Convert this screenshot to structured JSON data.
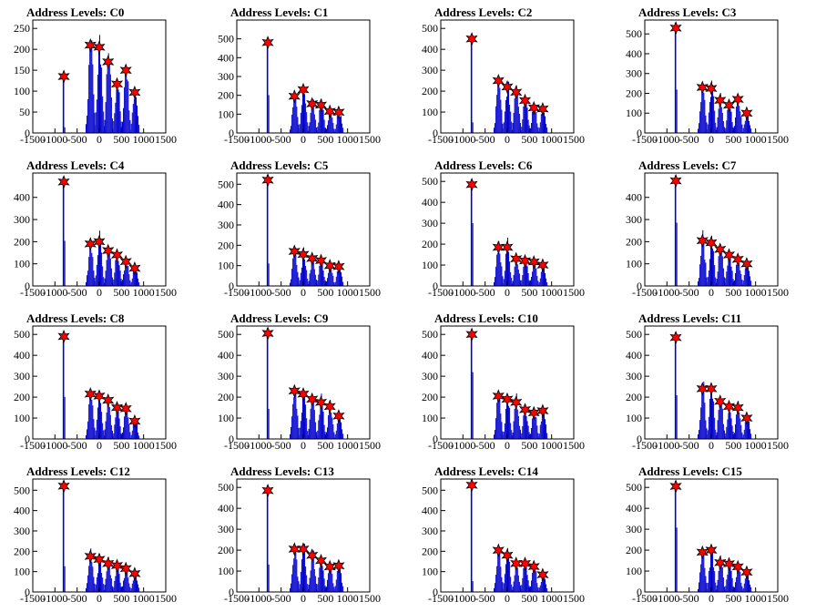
{
  "chart_data": [
    {
      "type": "bar",
      "title": "Address Levels: C0",
      "xlim": [
        -1500,
        1500
      ],
      "xticks": [
        -1500,
        -1000,
        -500,
        0,
        500,
        1000,
        1500
      ],
      "ylim": [
        0,
        270
      ],
      "yticks": [
        0,
        50,
        100,
        150,
        200,
        250
      ],
      "peaks": [
        {
          "x": -800,
          "y": 135
        },
        {
          "x": -200,
          "y": 210
        },
        {
          "x": 0,
          "y": 205
        },
        {
          "x": 200,
          "y": 170
        },
        {
          "x": 400,
          "y": 117
        },
        {
          "x": 600,
          "y": 150
        },
        {
          "x": 800,
          "y": 97
        }
      ]
    },
    {
      "type": "bar",
      "title": "Address Levels: C1",
      "xlim": [
        -1500,
        1500
      ],
      "xticks": [
        -1500,
        -1000,
        -500,
        0,
        500,
        1000,
        1500
      ],
      "ylim": [
        0,
        600
      ],
      "yticks": [
        0,
        100,
        200,
        300,
        400,
        500
      ],
      "peaks": [
        {
          "x": -800,
          "y": 480
        },
        {
          "x": -200,
          "y": 195
        },
        {
          "x": 0,
          "y": 230
        },
        {
          "x": 200,
          "y": 155
        },
        {
          "x": 400,
          "y": 148
        },
        {
          "x": 600,
          "y": 115
        },
        {
          "x": 800,
          "y": 110
        }
      ]
    },
    {
      "type": "bar",
      "title": "Address Levels: C2",
      "xlim": [
        -1500,
        1500
      ],
      "xticks": [
        -1500,
        -1000,
        -500,
        0,
        500,
        1000,
        1500
      ],
      "ylim": [
        0,
        540
      ],
      "yticks": [
        0,
        100,
        200,
        300,
        400,
        500
      ],
      "peaks": [
        {
          "x": -800,
          "y": 450
        },
        {
          "x": -200,
          "y": 250
        },
        {
          "x": 0,
          "y": 220
        },
        {
          "x": 200,
          "y": 195
        },
        {
          "x": 400,
          "y": 155
        },
        {
          "x": 600,
          "y": 120
        },
        {
          "x": 800,
          "y": 115
        }
      ]
    },
    {
      "type": "bar",
      "title": "Address Levels: C3",
      "xlim": [
        -1500,
        1500
      ],
      "xticks": [
        -1500,
        -1000,
        -500,
        0,
        500,
        1000,
        1500
      ],
      "ylim": [
        0,
        570
      ],
      "yticks": [
        0,
        100,
        200,
        300,
        400,
        500
      ],
      "peaks": [
        {
          "x": -800,
          "y": 530
        },
        {
          "x": -200,
          "y": 230
        },
        {
          "x": 0,
          "y": 225
        },
        {
          "x": 200,
          "y": 165
        },
        {
          "x": 400,
          "y": 140
        },
        {
          "x": 600,
          "y": 170
        },
        {
          "x": 800,
          "y": 100
        }
      ]
    },
    {
      "type": "bar",
      "title": "Address Levels: C4",
      "xlim": [
        -1500,
        1500
      ],
      "xticks": [
        -1500,
        -1000,
        -500,
        0,
        500,
        1000,
        1500
      ],
      "ylim": [
        0,
        510
      ],
      "yticks": [
        0,
        100,
        200,
        300,
        400
      ],
      "peaks": [
        {
          "x": -800,
          "y": 470
        },
        {
          "x": -200,
          "y": 190
        },
        {
          "x": 0,
          "y": 200
        },
        {
          "x": 200,
          "y": 160
        },
        {
          "x": 400,
          "y": 140
        },
        {
          "x": 600,
          "y": 110
        },
        {
          "x": 800,
          "y": 80
        }
      ]
    },
    {
      "type": "bar",
      "title": "Address Levels: C5",
      "xlim": [
        -1500,
        1500
      ],
      "xticks": [
        -1500,
        -1000,
        -500,
        0,
        500,
        1000,
        1500
      ],
      "ylim": [
        0,
        555
      ],
      "yticks": [
        0,
        100,
        200,
        300,
        400,
        500
      ],
      "peaks": [
        {
          "x": -800,
          "y": 520
        },
        {
          "x": -200,
          "y": 170
        },
        {
          "x": 0,
          "y": 155
        },
        {
          "x": 200,
          "y": 135
        },
        {
          "x": 400,
          "y": 125
        },
        {
          "x": 600,
          "y": 100
        },
        {
          "x": 800,
          "y": 95
        }
      ]
    },
    {
      "type": "bar",
      "title": "Address Levels: C6",
      "xlim": [
        -1500,
        1500
      ],
      "xticks": [
        -1500,
        -1000,
        -500,
        0,
        500,
        1000,
        1500
      ],
      "ylim": [
        0,
        540
      ],
      "yticks": [
        0,
        100,
        200,
        300,
        400,
        500
      ],
      "peaks": [
        {
          "x": -800,
          "y": 485
        },
        {
          "x": -200,
          "y": 185
        },
        {
          "x": 0,
          "y": 185
        },
        {
          "x": 200,
          "y": 130
        },
        {
          "x": 400,
          "y": 120
        },
        {
          "x": 600,
          "y": 115
        },
        {
          "x": 800,
          "y": 100
        }
      ]
    },
    {
      "type": "bar",
      "title": "Address Levels: C7",
      "xlim": [
        -1500,
        1500
      ],
      "xticks": [
        -1500,
        -1000,
        -500,
        0,
        500,
        1000,
        1500
      ],
      "ylim": [
        0,
        510
      ],
      "yticks": [
        0,
        100,
        200,
        300,
        400
      ],
      "peaks": [
        {
          "x": -800,
          "y": 475
        },
        {
          "x": -200,
          "y": 205
        },
        {
          "x": 0,
          "y": 195
        },
        {
          "x": 200,
          "y": 165
        },
        {
          "x": 400,
          "y": 140
        },
        {
          "x": 600,
          "y": 120
        },
        {
          "x": 800,
          "y": 100
        }
      ]
    },
    {
      "type": "bar",
      "title": "Address Levels: C8",
      "xlim": [
        -1500,
        1500
      ],
      "xticks": [
        -1500,
        -1000,
        -500,
        0,
        500,
        1000,
        1500
      ],
      "ylim": [
        0,
        540
      ],
      "yticks": [
        0,
        100,
        200,
        300,
        400,
        500
      ],
      "peaks": [
        {
          "x": -800,
          "y": 490
        },
        {
          "x": -200,
          "y": 215
        },
        {
          "x": 0,
          "y": 205
        },
        {
          "x": 200,
          "y": 185
        },
        {
          "x": 400,
          "y": 150
        },
        {
          "x": 600,
          "y": 145
        },
        {
          "x": 800,
          "y": 85
        }
      ]
    },
    {
      "type": "bar",
      "title": "Address Levels: C9",
      "xlim": [
        -1500,
        1500
      ],
      "xticks": [
        -1500,
        -1000,
        -500,
        0,
        500,
        1000,
        1500
      ],
      "ylim": [
        0,
        540
      ],
      "yticks": [
        0,
        100,
        200,
        300,
        400,
        500
      ],
      "peaks": [
        {
          "x": -800,
          "y": 505
        },
        {
          "x": -200,
          "y": 230
        },
        {
          "x": 0,
          "y": 215
        },
        {
          "x": 200,
          "y": 190
        },
        {
          "x": 400,
          "y": 175
        },
        {
          "x": 600,
          "y": 155
        },
        {
          "x": 800,
          "y": 110
        }
      ]
    },
    {
      "type": "bar",
      "title": "Address Levels: C10",
      "xlim": [
        -1500,
        1500
      ],
      "xticks": [
        -1500,
        -1000,
        -500,
        0,
        500,
        1000,
        1500
      ],
      "ylim": [
        0,
        540
      ],
      "yticks": [
        0,
        100,
        200,
        300,
        400,
        500
      ],
      "peaks": [
        {
          "x": -800,
          "y": 500
        },
        {
          "x": -200,
          "y": 205
        },
        {
          "x": 0,
          "y": 190
        },
        {
          "x": 200,
          "y": 175
        },
        {
          "x": 400,
          "y": 140
        },
        {
          "x": 600,
          "y": 125
        },
        {
          "x": 800,
          "y": 135
        }
      ]
    },
    {
      "type": "bar",
      "title": "Address Levels: C11",
      "xlim": [
        -1500,
        1500
      ],
      "xticks": [
        -1500,
        -1000,
        -500,
        0,
        500,
        1000,
        1500
      ],
      "ylim": [
        0,
        540
      ],
      "yticks": [
        0,
        100,
        200,
        300,
        400,
        500
      ],
      "peaks": [
        {
          "x": -800,
          "y": 485
        },
        {
          "x": -200,
          "y": 240
        },
        {
          "x": 0,
          "y": 240
        },
        {
          "x": 200,
          "y": 180
        },
        {
          "x": 400,
          "y": 155
        },
        {
          "x": 600,
          "y": 150
        },
        {
          "x": 800,
          "y": 100
        }
      ]
    },
    {
      "type": "bar",
      "title": "Address Levels: C12",
      "xlim": [
        -1500,
        1500
      ],
      "xticks": [
        -1500,
        -1000,
        -500,
        0,
        500,
        1000,
        1500
      ],
      "ylim": [
        0,
        555
      ],
      "yticks": [
        0,
        100,
        200,
        300,
        400,
        500
      ],
      "peaks": [
        {
          "x": -800,
          "y": 520
        },
        {
          "x": -200,
          "y": 175
        },
        {
          "x": 0,
          "y": 160
        },
        {
          "x": 200,
          "y": 140
        },
        {
          "x": 400,
          "y": 130
        },
        {
          "x": 600,
          "y": 115
        },
        {
          "x": 800,
          "y": 90
        }
      ]
    },
    {
      "type": "bar",
      "title": "Address Levels: C13",
      "xlim": [
        -1500,
        1500
      ],
      "xticks": [
        -1500,
        -1000,
        -500,
        0,
        500,
        1000,
        1500
      ],
      "ylim": [
        0,
        540
      ],
      "yticks": [
        0,
        100,
        200,
        300,
        400,
        500
      ],
      "peaks": [
        {
          "x": -800,
          "y": 485
        },
        {
          "x": -200,
          "y": 205
        },
        {
          "x": 0,
          "y": 205
        },
        {
          "x": 200,
          "y": 175
        },
        {
          "x": 400,
          "y": 150
        },
        {
          "x": 600,
          "y": 120
        },
        {
          "x": 800,
          "y": 125
        }
      ]
    },
    {
      "type": "bar",
      "title": "Address Levels: C14",
      "xlim": [
        -1500,
        1500
      ],
      "xticks": [
        -1500,
        -1000,
        -500,
        0,
        500,
        1000,
        1500
      ],
      "ylim": [
        0,
        555
      ],
      "yticks": [
        0,
        100,
        200,
        300,
        400,
        500
      ],
      "peaks": [
        {
          "x": -800,
          "y": 525
        },
        {
          "x": -200,
          "y": 205
        },
        {
          "x": 0,
          "y": 180
        },
        {
          "x": 200,
          "y": 140
        },
        {
          "x": 400,
          "y": 140
        },
        {
          "x": 600,
          "y": 125
        },
        {
          "x": 800,
          "y": 85
        }
      ]
    },
    {
      "type": "bar",
      "title": "Address Levels: C15",
      "xlim": [
        -1500,
        1500
      ],
      "xticks": [
        -1500,
        -1000,
        -500,
        0,
        500,
        1000,
        1500
      ],
      "ylim": [
        0,
        540
      ],
      "yticks": [
        0,
        100,
        200,
        300,
        400,
        500
      ],
      "peaks": [
        {
          "x": -800,
          "y": 505
        },
        {
          "x": -200,
          "y": 190
        },
        {
          "x": 0,
          "y": 200
        },
        {
          "x": 200,
          "y": 140
        },
        {
          "x": 400,
          "y": 135
        },
        {
          "x": 600,
          "y": 120
        },
        {
          "x": 800,
          "y": 95
        }
      ]
    }
  ],
  "colors": {
    "bars": "#0000cc",
    "marker": "#ff0000",
    "marker_edge": "#000000",
    "axis": "#000000"
  }
}
